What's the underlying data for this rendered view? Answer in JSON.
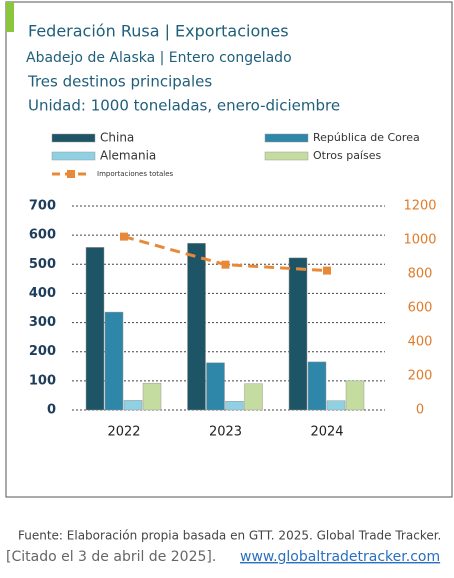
{
  "chart_data": {
    "type": "bar",
    "title": "Federación Rusa | Exportaciones",
    "subtitles": [
      "Abadejo de Alaska | Entero congelado",
      "Tres destinos principales",
      "Unidad: 1000 toneladas, enero-diciembre"
    ],
    "categories": [
      "2022",
      "2023",
      "2024"
    ],
    "series": [
      {
        "name": "China",
        "color": "#1d5566",
        "values": [
          558,
          572,
          522
        ]
      },
      {
        "name": "República de Corea",
        "color": "#2e86a8",
        "values": [
          336,
          162,
          165
        ]
      },
      {
        "name": "Alemania",
        "color": "#8fd0e2",
        "values": [
          33,
          30,
          32
        ]
      },
      {
        "name": "Otros países",
        "color": "#c5dca0",
        "values": [
          92,
          90,
          100
        ]
      },
      {
        "name": "Importaciones totales",
        "color": "#e8893a",
        "type": "line",
        "axis": "y2",
        "values": [
          1020,
          855,
          820
        ]
      }
    ],
    "ylim": [
      0,
      700
    ],
    "yticks": [
      0,
      100,
      200,
      300,
      400,
      500,
      600,
      700
    ],
    "y2lim": [
      0,
      1200
    ],
    "y2ticks": [
      0,
      200,
      400,
      600,
      800,
      1000,
      1200
    ],
    "grid": true
  },
  "footer": {
    "source": "Fuente: Elaboración propia basada en GTT. 2025. Global Trade Tracker.",
    "citation": "[Citado el 3 de abril de 2025].",
    "url": "www.globaltradetracker.com"
  }
}
